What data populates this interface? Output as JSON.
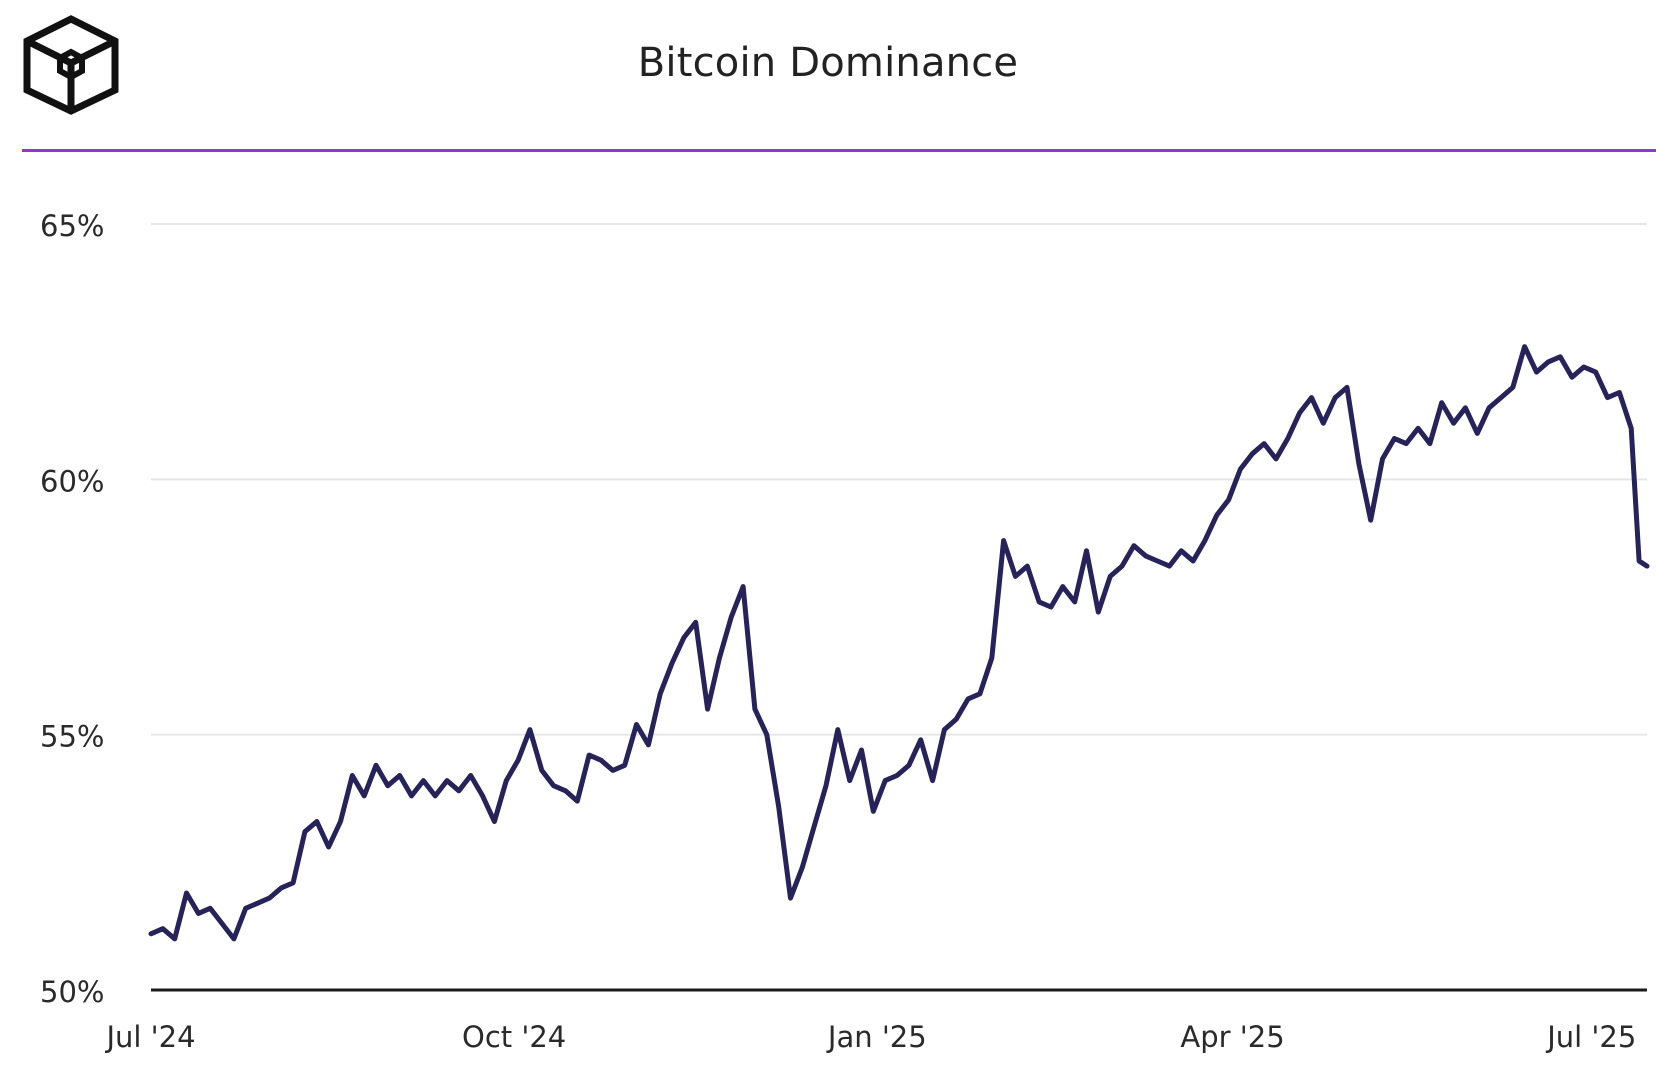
{
  "title": "Bitcoin Dominance",
  "logo": {
    "icon": "cube-logo-icon"
  },
  "colors": {
    "accent": "#9b30d9",
    "line": "#26225a",
    "grid": "#e6e6e6",
    "axis": "#1a1a1a"
  },
  "chart_data": {
    "type": "line",
    "title": "Bitcoin Dominance",
    "xlabel": "",
    "ylabel": "",
    "x_start": "2024-07-01",
    "x_end": "2025-07-15",
    "ylim": [
      50,
      65
    ],
    "x_ticks": [
      {
        "date": "2024-07-01",
        "label": "Jul '24"
      },
      {
        "date": "2024-10-01",
        "label": "Oct '24"
      },
      {
        "date": "2025-01-01",
        "label": "Jan '25"
      },
      {
        "date": "2025-04-01",
        "label": "Apr '25"
      },
      {
        "date": "2025-07-01",
        "label": "Jul '25"
      }
    ],
    "y_ticks": [
      {
        "value": 50,
        "label": "50%"
      },
      {
        "value": 55,
        "label": "55%"
      },
      {
        "value": 60,
        "label": "60%"
      },
      {
        "value": 65,
        "label": "65%"
      }
    ],
    "grid": true,
    "legend": "none",
    "series": [
      {
        "x": [
          "2024-07-01",
          "2024-07-04",
          "2024-07-07",
          "2024-07-10",
          "2024-07-13",
          "2024-07-16",
          "2024-07-19",
          "2024-07-22",
          "2024-07-25",
          "2024-07-28",
          "2024-07-31",
          "2024-08-03",
          "2024-08-06",
          "2024-08-09",
          "2024-08-12",
          "2024-08-15",
          "2024-08-18",
          "2024-08-21",
          "2024-08-24",
          "2024-08-27",
          "2024-08-30",
          "2024-09-02",
          "2024-09-05",
          "2024-09-08",
          "2024-09-11",
          "2024-09-14",
          "2024-09-17",
          "2024-09-20",
          "2024-09-23",
          "2024-09-26",
          "2024-09-29",
          "2024-10-02",
          "2024-10-05",
          "2024-10-08",
          "2024-10-11",
          "2024-10-14",
          "2024-10-17",
          "2024-10-20",
          "2024-10-23",
          "2024-10-26",
          "2024-10-29",
          "2024-11-01",
          "2024-11-04",
          "2024-11-07",
          "2024-11-10",
          "2024-11-13",
          "2024-11-16",
          "2024-11-19",
          "2024-11-22",
          "2024-11-25",
          "2024-11-28",
          "2024-12-01",
          "2024-12-04",
          "2024-12-07",
          "2024-12-10",
          "2024-12-13",
          "2024-12-16",
          "2024-12-19",
          "2024-12-22",
          "2024-12-25",
          "2024-12-28",
          "2024-12-31",
          "2025-01-03",
          "2025-01-06",
          "2025-01-09",
          "2025-01-12",
          "2025-01-15",
          "2025-01-18",
          "2025-01-21",
          "2025-01-24",
          "2025-01-27",
          "2025-01-30",
          "2025-02-02",
          "2025-02-05",
          "2025-02-08",
          "2025-02-11",
          "2025-02-14",
          "2025-02-17",
          "2025-02-20",
          "2025-02-23",
          "2025-02-26",
          "2025-03-01",
          "2025-03-04",
          "2025-03-07",
          "2025-03-10",
          "2025-03-13",
          "2025-03-16",
          "2025-03-19",
          "2025-03-22",
          "2025-03-25",
          "2025-03-28",
          "2025-03-31",
          "2025-04-03",
          "2025-04-06",
          "2025-04-09",
          "2025-04-12",
          "2025-04-15",
          "2025-04-18",
          "2025-04-21",
          "2025-04-24",
          "2025-04-27",
          "2025-04-30",
          "2025-05-03",
          "2025-05-06",
          "2025-05-09",
          "2025-05-12",
          "2025-05-15",
          "2025-05-18",
          "2025-05-21",
          "2025-05-24",
          "2025-05-27",
          "2025-05-30",
          "2025-06-02",
          "2025-06-05",
          "2025-06-08",
          "2025-06-11",
          "2025-06-14",
          "2025-06-17",
          "2025-06-20",
          "2025-06-23",
          "2025-06-26",
          "2025-06-29",
          "2025-07-02",
          "2025-07-05",
          "2025-07-08",
          "2025-07-11",
          "2025-07-13",
          "2025-07-15"
        ],
        "y": [
          51.1,
          51.2,
          51.0,
          51.9,
          51.5,
          51.6,
          51.3,
          51.0,
          51.6,
          51.7,
          51.8,
          52.0,
          52.1,
          53.1,
          53.3,
          52.8,
          53.3,
          54.2,
          53.8,
          54.4,
          54.0,
          54.2,
          53.8,
          54.1,
          53.8,
          54.1,
          53.9,
          54.2,
          53.8,
          53.3,
          54.1,
          54.5,
          55.1,
          54.3,
          54.0,
          53.9,
          53.7,
          54.6,
          54.5,
          54.3,
          54.4,
          55.2,
          54.8,
          55.8,
          56.4,
          56.9,
          57.2,
          55.5,
          56.5,
          57.3,
          57.9,
          55.5,
          55.0,
          53.6,
          51.8,
          52.4,
          53.2,
          54.0,
          55.1,
          54.1,
          54.7,
          53.5,
          54.1,
          54.2,
          54.4,
          54.9,
          54.1,
          55.1,
          55.3,
          55.7,
          55.8,
          56.5,
          58.8,
          58.1,
          58.3,
          57.6,
          57.5,
          57.9,
          57.6,
          58.6,
          57.4,
          58.1,
          58.3,
          58.7,
          58.5,
          58.4,
          58.3,
          58.6,
          58.4,
          58.8,
          59.3,
          59.6,
          60.2,
          60.5,
          60.7,
          60.4,
          60.8,
          61.3,
          61.6,
          61.1,
          61.6,
          61.8,
          60.3,
          59.2,
          60.4,
          60.8,
          60.7,
          61.0,
          60.7,
          61.5,
          61.1,
          61.4,
          60.9,
          61.4,
          61.6,
          61.8,
          62.6,
          62.1,
          62.3,
          62.4,
          62.0,
          62.2,
          62.1,
          61.6,
          61.7,
          61.0,
          58.4,
          58.3
        ]
      }
    ]
  }
}
